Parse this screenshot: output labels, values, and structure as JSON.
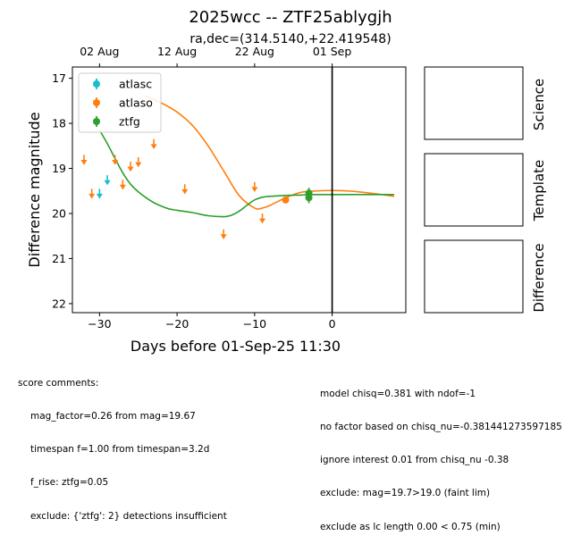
{
  "title": "2025wcc -- ZTF25ablygjh",
  "subtitle": "ra,dec=(314.5140,+22.419548)",
  "colors": {
    "atlasc": "#17becf",
    "atlaso": "#ff7f0e",
    "ztfg": "#2ca02c"
  },
  "chart_data": {
    "type": "scatter",
    "title": "2025wcc -- ZTF25ablygjh",
    "subtitle": "ra,dec=(314.5140,+22.419548)",
    "xlabel": "Days before 01-Sep-25 11:30",
    "ylabel": "Difference magnitude",
    "xlim": [
      -33.5,
      9.5
    ],
    "ylim": [
      22.2,
      16.75
    ],
    "y_inverted": true,
    "xticks": [
      -30,
      -20,
      -10,
      0
    ],
    "xtick_labels": [
      "−30",
      "−20",
      "−10",
      "0"
    ],
    "yticks": [
      17,
      18,
      19,
      20,
      21,
      22
    ],
    "ytick_labels": [
      "17",
      "18",
      "19",
      "20",
      "21",
      "22"
    ],
    "top_axis": {
      "ticks": [
        -30,
        -20,
        -10,
        0
      ],
      "labels": [
        "02 Aug",
        "12 Aug",
        "22 Aug",
        "01 Sep"
      ]
    },
    "vline_x": 0,
    "grid": false,
    "legend_position": "upper-left",
    "legend": [
      "atlasc",
      "atlaso",
      "ztfg"
    ],
    "series": [
      {
        "name": "atlasc",
        "upper_limits": [
          {
            "x": -30.0,
            "y": 19.55
          },
          {
            "x": -29.0,
            "y": 19.25
          }
        ],
        "detections": []
      },
      {
        "name": "atlaso",
        "upper_limits": [
          {
            "x": -32.0,
            "y": 18.8
          },
          {
            "x": -31.0,
            "y": 19.55
          },
          {
            "x": -28.0,
            "y": 18.8
          },
          {
            "x": -27.0,
            "y": 19.35
          },
          {
            "x": -26.0,
            "y": 18.95
          },
          {
            "x": -25.0,
            "y": 18.85
          },
          {
            "x": -23.0,
            "y": 18.45
          },
          {
            "x": -19.0,
            "y": 19.45
          },
          {
            "x": -14.0,
            "y": 20.45
          },
          {
            "x": -10.0,
            "y": 19.4
          },
          {
            "x": -9.0,
            "y": 20.1
          }
        ],
        "detections": [
          {
            "x": -6.0,
            "y": 19.7,
            "err": 0.05
          }
        ]
      },
      {
        "name": "ztfg",
        "upper_limits": [],
        "detections": [
          {
            "x": -3.0,
            "y": 19.55,
            "err": 0.12
          },
          {
            "x": -3.0,
            "y": 19.65,
            "err": 0.12
          }
        ]
      }
    ],
    "model_curves": [
      {
        "series": "atlaso",
        "x": [
          -24,
          -22,
          -20,
          -18,
          -16,
          -14,
          -12,
          -10,
          -9,
          -8,
          -6,
          -4,
          -2,
          0,
          2,
          4,
          6,
          8
        ],
        "y": [
          17.4,
          17.55,
          17.75,
          18.05,
          18.5,
          19.05,
          19.6,
          19.88,
          19.88,
          19.82,
          19.65,
          19.53,
          19.5,
          19.49,
          19.5,
          19.53,
          19.57,
          19.62
        ]
      },
      {
        "series": "ztfg",
        "x": [
          -30,
          -29,
          -28,
          -27,
          -26,
          -25,
          -24,
          -23,
          -22,
          -21,
          -20,
          -18,
          -16,
          -14,
          -13,
          -12,
          -11,
          -10,
          -9,
          -8,
          -6,
          -4,
          -2,
          0,
          2,
          4,
          6,
          8
        ],
        "y": [
          18.15,
          18.45,
          18.78,
          19.1,
          19.35,
          19.52,
          19.65,
          19.76,
          19.84,
          19.9,
          19.93,
          19.98,
          20.05,
          20.07,
          20.04,
          19.95,
          19.82,
          19.7,
          19.64,
          19.62,
          19.6,
          19.59,
          19.58,
          19.58,
          19.58,
          19.58,
          19.58,
          19.58
        ]
      }
    ]
  },
  "panels": [
    {
      "label": "Science"
    },
    {
      "label": "Template"
    },
    {
      "label": "Difference"
    }
  ],
  "comments_left": {
    "heading": "score comments:",
    "lines": [
      "mag_factor=0.26 from mag=19.67",
      "timespan f=1.00 from timespan=3.2d",
      "f_rise: ztfg=0.05",
      "exclude: {'ztfg': 2} detections insufficient"
    ]
  },
  "comments_right": {
    "lines": [
      "model chisq=0.381 with ndof=-1",
      "no factor based on chisq_nu=-0.381441273597185",
      "ignore interest 0.01 from chisq_nu -0.38",
      "exclude: mag=19.7>19.0 (faint lim)",
      "exclude as lc length 0.00 < 0.75 (min)"
    ]
  }
}
